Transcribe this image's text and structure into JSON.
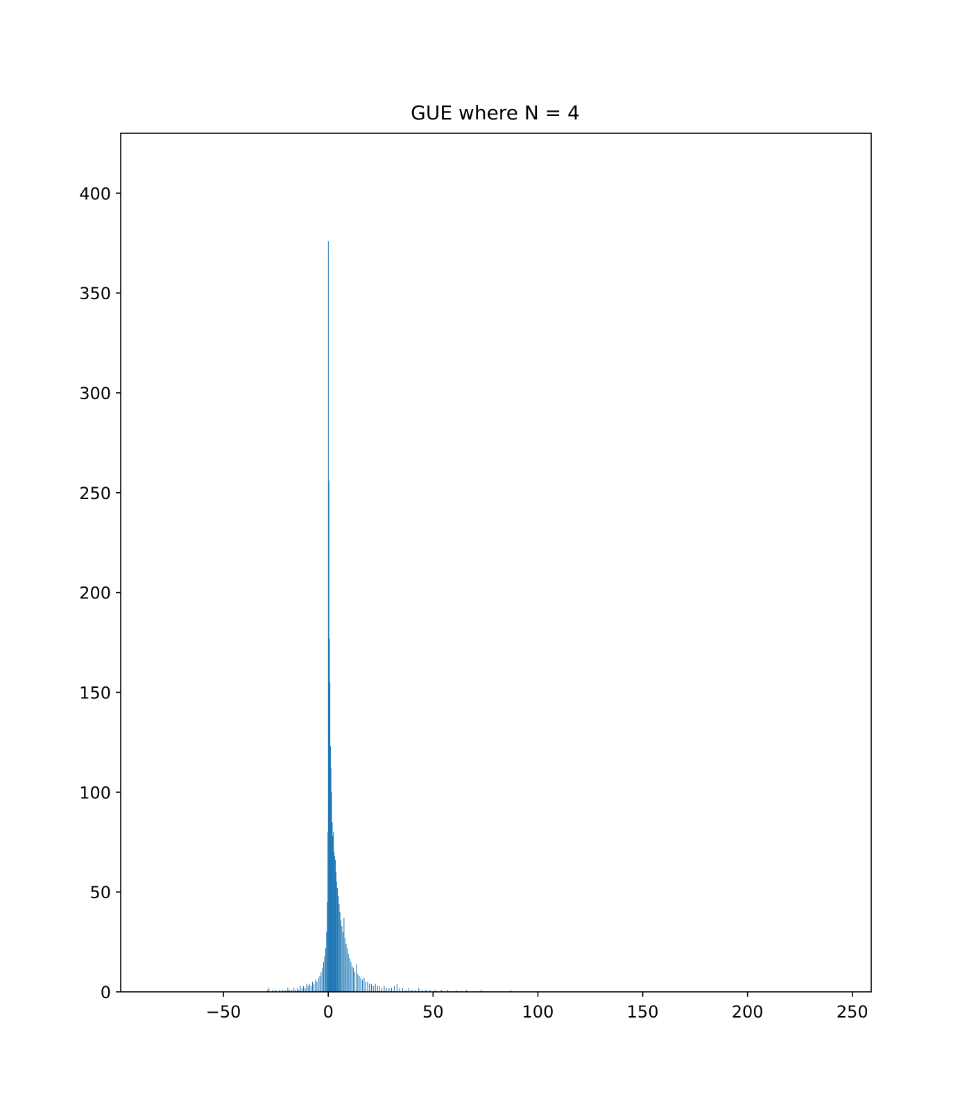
{
  "chart_data": {
    "type": "bar",
    "title": "GUE where N = 4",
    "xlabel": "",
    "ylabel": "",
    "xlim": [
      -99,
      259
    ],
    "ylim": [
      0,
      430
    ],
    "xticks": [
      -50,
      0,
      50,
      100,
      150,
      200,
      250
    ],
    "xtick_labels": [
      "−50",
      "0",
      "50",
      "100",
      "150",
      "200",
      "250"
    ],
    "yticks": [
      0,
      50,
      100,
      150,
      200,
      250,
      300,
      350,
      400
    ],
    "ytick_labels": [
      "0",
      "50",
      "100",
      "150",
      "200",
      "250",
      "300",
      "350",
      "400"
    ],
    "grid": false,
    "bar_color": "#1f77b4",
    "bin_width": 0.35,
    "bins": [
      {
        "x": -29.0,
        "count": 1
      },
      {
        "x": -28.3,
        "count": 2
      },
      {
        "x": -26.5,
        "count": 1
      },
      {
        "x": -25.0,
        "count": 1
      },
      {
        "x": -23.2,
        "count": 1
      },
      {
        "x": -21.7,
        "count": 1
      },
      {
        "x": -20.5,
        "count": 1
      },
      {
        "x": -19.3,
        "count": 2
      },
      {
        "x": -18.6,
        "count": 1
      },
      {
        "x": -17.5,
        "count": 1
      },
      {
        "x": -16.4,
        "count": 2
      },
      {
        "x": -15.6,
        "count": 1
      },
      {
        "x": -14.8,
        "count": 2
      },
      {
        "x": -14.0,
        "count": 1
      },
      {
        "x": -13.3,
        "count": 3
      },
      {
        "x": -12.5,
        "count": 2
      },
      {
        "x": -11.8,
        "count": 3
      },
      {
        "x": -11.0,
        "count": 2
      },
      {
        "x": -10.3,
        "count": 4
      },
      {
        "x": -9.6,
        "count": 3
      },
      {
        "x": -8.9,
        "count": 4
      },
      {
        "x": -8.2,
        "count": 3
      },
      {
        "x": -7.5,
        "count": 5
      },
      {
        "x": -6.8,
        "count": 4
      },
      {
        "x": -6.1,
        "count": 6
      },
      {
        "x": -5.4,
        "count": 5
      },
      {
        "x": -4.7,
        "count": 7
      },
      {
        "x": -4.0,
        "count": 8
      },
      {
        "x": -3.4,
        "count": 10
      },
      {
        "x": -2.8,
        "count": 12
      },
      {
        "x": -2.2,
        "count": 15
      },
      {
        "x": -1.7,
        "count": 18
      },
      {
        "x": -1.2,
        "count": 22
      },
      {
        "x": -0.8,
        "count": 30
      },
      {
        "x": -0.45,
        "count": 45
      },
      {
        "x": -0.15,
        "count": 80
      },
      {
        "x": 0.05,
        "count": 376
      },
      {
        "x": 0.3,
        "count": 256
      },
      {
        "x": 0.55,
        "count": 177
      },
      {
        "x": 0.8,
        "count": 155
      },
      {
        "x": 1.05,
        "count": 123
      },
      {
        "x": 1.3,
        "count": 112
      },
      {
        "x": 1.6,
        "count": 100
      },
      {
        "x": 1.9,
        "count": 85
      },
      {
        "x": 2.2,
        "count": 78
      },
      {
        "x": 2.5,
        "count": 80
      },
      {
        "x": 2.8,
        "count": 70
      },
      {
        "x": 3.1,
        "count": 68
      },
      {
        "x": 3.4,
        "count": 66
      },
      {
        "x": 3.7,
        "count": 60
      },
      {
        "x": 4.0,
        "count": 55
      },
      {
        "x": 4.4,
        "count": 52
      },
      {
        "x": 4.8,
        "count": 48
      },
      {
        "x": 5.2,
        "count": 44
      },
      {
        "x": 5.6,
        "count": 40
      },
      {
        "x": 6.0,
        "count": 36
      },
      {
        "x": 6.5,
        "count": 33
      },
      {
        "x": 7.0,
        "count": 30
      },
      {
        "x": 7.5,
        "count": 37
      },
      {
        "x": 8.0,
        "count": 27
      },
      {
        "x": 8.5,
        "count": 24
      },
      {
        "x": 9.0,
        "count": 22
      },
      {
        "x": 9.6,
        "count": 19
      },
      {
        "x": 10.2,
        "count": 17
      },
      {
        "x": 10.8,
        "count": 15
      },
      {
        "x": 11.4,
        "count": 13
      },
      {
        "x": 12.0,
        "count": 12
      },
      {
        "x": 12.7,
        "count": 10
      },
      {
        "x": 13.4,
        "count": 14
      },
      {
        "x": 14.1,
        "count": 9
      },
      {
        "x": 14.8,
        "count": 8
      },
      {
        "x": 15.5,
        "count": 7
      },
      {
        "x": 16.3,
        "count": 6
      },
      {
        "x": 17.1,
        "count": 7
      },
      {
        "x": 17.9,
        "count": 5
      },
      {
        "x": 18.8,
        "count": 5
      },
      {
        "x": 19.7,
        "count": 4
      },
      {
        "x": 20.6,
        "count": 4
      },
      {
        "x": 21.5,
        "count": 3
      },
      {
        "x": 22.5,
        "count": 4
      },
      {
        "x": 23.5,
        "count": 3
      },
      {
        "x": 24.5,
        "count": 3
      },
      {
        "x": 25.6,
        "count": 2
      },
      {
        "x": 26.7,
        "count": 3
      },
      {
        "x": 27.8,
        "count": 2
      },
      {
        "x": 29.0,
        "count": 2
      },
      {
        "x": 30.2,
        "count": 2
      },
      {
        "x": 31.5,
        "count": 3
      },
      {
        "x": 32.8,
        "count": 4
      },
      {
        "x": 34.1,
        "count": 2
      },
      {
        "x": 35.5,
        "count": 2
      },
      {
        "x": 37.0,
        "count": 1
      },
      {
        "x": 38.5,
        "count": 2
      },
      {
        "x": 40.0,
        "count": 1
      },
      {
        "x": 41.6,
        "count": 1
      },
      {
        "x": 43.2,
        "count": 2
      },
      {
        "x": 44.8,
        "count": 1
      },
      {
        "x": 46.5,
        "count": 1
      },
      {
        "x": 48.5,
        "count": 1
      },
      {
        "x": 51.0,
        "count": 1
      },
      {
        "x": 54.0,
        "count": 1
      },
      {
        "x": 57.0,
        "count": 1
      },
      {
        "x": 61.0,
        "count": 1
      },
      {
        "x": 66.0,
        "count": 1
      },
      {
        "x": 73.0,
        "count": 1
      },
      {
        "x": 87.0,
        "count": 1
      }
    ]
  }
}
